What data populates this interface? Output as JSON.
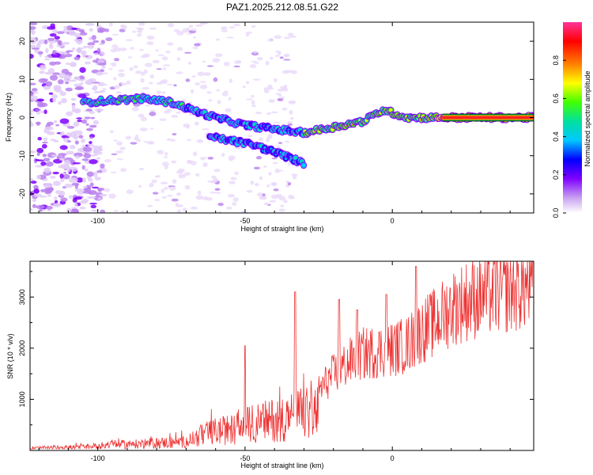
{
  "figure_title": "PAZ1.2025.212.08.51.G22",
  "chart_data": [
    {
      "type": "heatmap",
      "title": "PAZ1.2025.212.08.51.G22",
      "xlabel": "Height of straight line (km)",
      "ylabel": "Frequency (Hz)",
      "xlim": [
        -123,
        48
      ],
      "ylim": [
        -25,
        25
      ],
      "x_ticks": [
        -100,
        -50,
        0
      ],
      "y_ticks": [
        20,
        10,
        0,
        -10,
        -20
      ],
      "colorbar": {
        "label": "Normalized spectral amplitude",
        "range": [
          0,
          1
        ],
        "ticks": [
          "0.0",
          "0.2",
          "0.4",
          "0.6",
          "0.8"
        ],
        "colormap": [
          "#ffffff",
          "#c8a0f0",
          "#7f00ff",
          "#0000ff",
          "#00c8ff",
          "#00e0a0",
          "#40ff00",
          "#ffff00",
          "#ff8000",
          "#ff0000",
          "#ff3399"
        ]
      },
      "dominant_track": {
        "x": [
          -105,
          -95,
          -85,
          -75,
          -68,
          -60,
          -50,
          -40,
          -30,
          -20,
          -10,
          -3,
          5,
          15,
          48
        ],
        "y": [
          4,
          4.5,
          5,
          4,
          2,
          0,
          -2,
          -3,
          -4,
          -2.5,
          -1,
          2,
          0,
          0,
          0
        ]
      },
      "secondary_track": {
        "x": [
          -62,
          -55,
          -48,
          -40,
          -35,
          -30
        ],
        "y": [
          -5,
          -6,
          -7,
          -9,
          -10.5,
          -12
        ]
      }
    },
    {
      "type": "line",
      "xlabel": "Height of straight line (km)",
      "ylabel": "SNR (10 * v/v)",
      "xlim": [
        -123,
        48
      ],
      "ylim": [
        0,
        3700
      ],
      "x_ticks": [
        -100,
        -50,
        0
      ],
      "y_ticks": [
        1000,
        2000,
        3000
      ],
      "color": "#ee3333",
      "x": [
        -123,
        -110,
        -100,
        -95,
        -90,
        -80,
        -70,
        -65,
        -60,
        -55,
        -50,
        -45,
        -40,
        -35,
        -30,
        -25,
        -20,
        -15,
        -10,
        -5,
        0,
        5,
        10,
        15,
        20,
        25,
        30,
        35,
        40,
        48
      ],
      "envelope": [
        80,
        100,
        150,
        220,
        200,
        250,
        300,
        500,
        650,
        700,
        850,
        950,
        1050,
        1150,
        1250,
        1300,
        1650,
        1900,
        2100,
        2150,
        2200,
        2300,
        2600,
        2800,
        3100,
        3250,
        3350,
        3450,
        3500,
        3600
      ],
      "spikes": [
        {
          "x": -50,
          "y": 2050
        },
        {
          "x": -33,
          "y": 3100
        },
        {
          "x": -18,
          "y": 2950
        },
        {
          "x": -12,
          "y": 2750
        },
        {
          "x": 8,
          "y": 3600
        },
        {
          "x": -2,
          "y": 3050
        }
      ]
    }
  ]
}
